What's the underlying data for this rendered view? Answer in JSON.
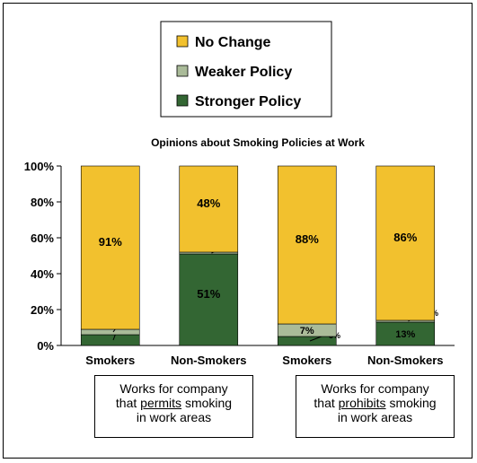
{
  "chart_data": {
    "type": "bar",
    "stacked": true,
    "percent": true,
    "title": "Opinions about Smoking Policies at Work",
    "categories": [
      "Smokers",
      "Non-Smokers",
      "Smokers",
      "Non-Smokers"
    ],
    "ylim": [
      0,
      100
    ],
    "yticks": [
      "0%",
      "20%",
      "40%",
      "60%",
      "80%",
      "100%"
    ],
    "grid": false,
    "legend": {
      "position": "top-center"
    },
    "series": [
      {
        "name": "Stronger Policy",
        "color": "#336633",
        "values": [
          6,
          51,
          5,
          13
        ],
        "labels": [
          "6%",
          "51%",
          "5%",
          "13%"
        ]
      },
      {
        "name": "Weaker Policy",
        "color": "#aabb99",
        "values": [
          3,
          1,
          7,
          1
        ],
        "labels": [
          "3%",
          "1%",
          "7%",
          "1%"
        ]
      },
      {
        "name": "No Change",
        "color": "#f2c12e",
        "values": [
          91,
          48,
          88,
          86
        ],
        "labels": [
          "91%",
          "48%",
          "88%",
          "86%"
        ]
      }
    ],
    "groups": [
      {
        "line1": "Works for company",
        "line2_pre": "that ",
        "line2_key": "permits",
        "line2_post": " smoking",
        "line3": "in work areas"
      },
      {
        "line1": "Works for company",
        "line2_pre": "that ",
        "line2_key": "prohibits",
        "line2_post": " smoking",
        "line3": "in work areas"
      }
    ]
  }
}
